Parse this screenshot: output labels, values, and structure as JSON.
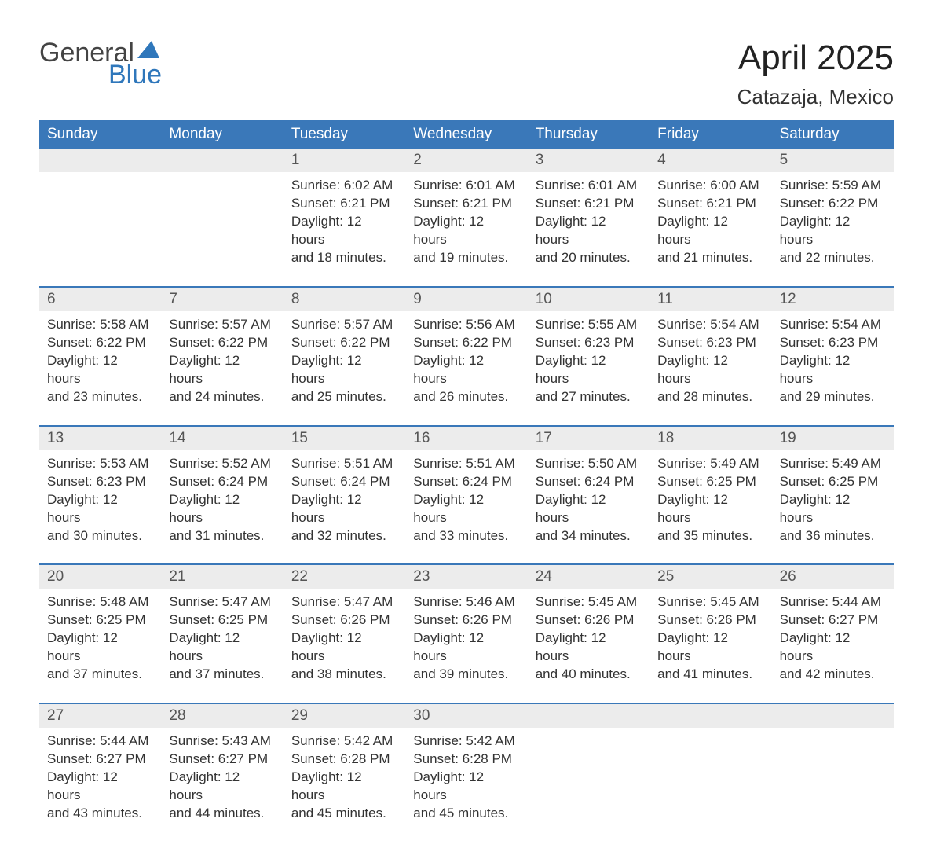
{
  "brand": {
    "part1": "General",
    "part2": "Blue",
    "accent_color": "#2f77bb",
    "text_color": "#444444"
  },
  "title": "April 2025",
  "location": "Catazaja, Mexico",
  "colors": {
    "header_bg": "#3a78b9",
    "header_text": "#ffffff",
    "date_bg": "#ececec",
    "date_text": "#555555",
    "body_text": "#333333",
    "rule": "#3a78b9",
    "page_bg": "#ffffff"
  },
  "fonts": {
    "title_size": 44,
    "location_size": 26,
    "dayheader_size": 19,
    "datenum_size": 19,
    "detail_size": 17
  },
  "day_names": [
    "Sunday",
    "Monday",
    "Tuesday",
    "Wednesday",
    "Thursday",
    "Friday",
    "Saturday"
  ],
  "weeks": [
    {
      "dates": [
        "",
        "",
        "1",
        "2",
        "3",
        "4",
        "5"
      ],
      "details": [
        {
          "sunrise": "",
          "sunset": "",
          "daylight1": "",
          "daylight2": ""
        },
        {
          "sunrise": "",
          "sunset": "",
          "daylight1": "",
          "daylight2": ""
        },
        {
          "sunrise": "Sunrise: 6:02 AM",
          "sunset": "Sunset: 6:21 PM",
          "daylight1": "Daylight: 12 hours",
          "daylight2": "and 18 minutes."
        },
        {
          "sunrise": "Sunrise: 6:01 AM",
          "sunset": "Sunset: 6:21 PM",
          "daylight1": "Daylight: 12 hours",
          "daylight2": "and 19 minutes."
        },
        {
          "sunrise": "Sunrise: 6:01 AM",
          "sunset": "Sunset: 6:21 PM",
          "daylight1": "Daylight: 12 hours",
          "daylight2": "and 20 minutes."
        },
        {
          "sunrise": "Sunrise: 6:00 AM",
          "sunset": "Sunset: 6:21 PM",
          "daylight1": "Daylight: 12 hours",
          "daylight2": "and 21 minutes."
        },
        {
          "sunrise": "Sunrise: 5:59 AM",
          "sunset": "Sunset: 6:22 PM",
          "daylight1": "Daylight: 12 hours",
          "daylight2": "and 22 minutes."
        }
      ]
    },
    {
      "dates": [
        "6",
        "7",
        "8",
        "9",
        "10",
        "11",
        "12"
      ],
      "details": [
        {
          "sunrise": "Sunrise: 5:58 AM",
          "sunset": "Sunset: 6:22 PM",
          "daylight1": "Daylight: 12 hours",
          "daylight2": "and 23 minutes."
        },
        {
          "sunrise": "Sunrise: 5:57 AM",
          "sunset": "Sunset: 6:22 PM",
          "daylight1": "Daylight: 12 hours",
          "daylight2": "and 24 minutes."
        },
        {
          "sunrise": "Sunrise: 5:57 AM",
          "sunset": "Sunset: 6:22 PM",
          "daylight1": "Daylight: 12 hours",
          "daylight2": "and 25 minutes."
        },
        {
          "sunrise": "Sunrise: 5:56 AM",
          "sunset": "Sunset: 6:22 PM",
          "daylight1": "Daylight: 12 hours",
          "daylight2": "and 26 minutes."
        },
        {
          "sunrise": "Sunrise: 5:55 AM",
          "sunset": "Sunset: 6:23 PM",
          "daylight1": "Daylight: 12 hours",
          "daylight2": "and 27 minutes."
        },
        {
          "sunrise": "Sunrise: 5:54 AM",
          "sunset": "Sunset: 6:23 PM",
          "daylight1": "Daylight: 12 hours",
          "daylight2": "and 28 minutes."
        },
        {
          "sunrise": "Sunrise: 5:54 AM",
          "sunset": "Sunset: 6:23 PM",
          "daylight1": "Daylight: 12 hours",
          "daylight2": "and 29 minutes."
        }
      ]
    },
    {
      "dates": [
        "13",
        "14",
        "15",
        "16",
        "17",
        "18",
        "19"
      ],
      "details": [
        {
          "sunrise": "Sunrise: 5:53 AM",
          "sunset": "Sunset: 6:23 PM",
          "daylight1": "Daylight: 12 hours",
          "daylight2": "and 30 minutes."
        },
        {
          "sunrise": "Sunrise: 5:52 AM",
          "sunset": "Sunset: 6:24 PM",
          "daylight1": "Daylight: 12 hours",
          "daylight2": "and 31 minutes."
        },
        {
          "sunrise": "Sunrise: 5:51 AM",
          "sunset": "Sunset: 6:24 PM",
          "daylight1": "Daylight: 12 hours",
          "daylight2": "and 32 minutes."
        },
        {
          "sunrise": "Sunrise: 5:51 AM",
          "sunset": "Sunset: 6:24 PM",
          "daylight1": "Daylight: 12 hours",
          "daylight2": "and 33 minutes."
        },
        {
          "sunrise": "Sunrise: 5:50 AM",
          "sunset": "Sunset: 6:24 PM",
          "daylight1": "Daylight: 12 hours",
          "daylight2": "and 34 minutes."
        },
        {
          "sunrise": "Sunrise: 5:49 AM",
          "sunset": "Sunset: 6:25 PM",
          "daylight1": "Daylight: 12 hours",
          "daylight2": "and 35 minutes."
        },
        {
          "sunrise": "Sunrise: 5:49 AM",
          "sunset": "Sunset: 6:25 PM",
          "daylight1": "Daylight: 12 hours",
          "daylight2": "and 36 minutes."
        }
      ]
    },
    {
      "dates": [
        "20",
        "21",
        "22",
        "23",
        "24",
        "25",
        "26"
      ],
      "details": [
        {
          "sunrise": "Sunrise: 5:48 AM",
          "sunset": "Sunset: 6:25 PM",
          "daylight1": "Daylight: 12 hours",
          "daylight2": "and 37 minutes."
        },
        {
          "sunrise": "Sunrise: 5:47 AM",
          "sunset": "Sunset: 6:25 PM",
          "daylight1": "Daylight: 12 hours",
          "daylight2": "and 37 minutes."
        },
        {
          "sunrise": "Sunrise: 5:47 AM",
          "sunset": "Sunset: 6:26 PM",
          "daylight1": "Daylight: 12 hours",
          "daylight2": "and 38 minutes."
        },
        {
          "sunrise": "Sunrise: 5:46 AM",
          "sunset": "Sunset: 6:26 PM",
          "daylight1": "Daylight: 12 hours",
          "daylight2": "and 39 minutes."
        },
        {
          "sunrise": "Sunrise: 5:45 AM",
          "sunset": "Sunset: 6:26 PM",
          "daylight1": "Daylight: 12 hours",
          "daylight2": "and 40 minutes."
        },
        {
          "sunrise": "Sunrise: 5:45 AM",
          "sunset": "Sunset: 6:26 PM",
          "daylight1": "Daylight: 12 hours",
          "daylight2": "and 41 minutes."
        },
        {
          "sunrise": "Sunrise: 5:44 AM",
          "sunset": "Sunset: 6:27 PM",
          "daylight1": "Daylight: 12 hours",
          "daylight2": "and 42 minutes."
        }
      ]
    },
    {
      "dates": [
        "27",
        "28",
        "29",
        "30",
        "",
        "",
        ""
      ],
      "details": [
        {
          "sunrise": "Sunrise: 5:44 AM",
          "sunset": "Sunset: 6:27 PM",
          "daylight1": "Daylight: 12 hours",
          "daylight2": "and 43 minutes."
        },
        {
          "sunrise": "Sunrise: 5:43 AM",
          "sunset": "Sunset: 6:27 PM",
          "daylight1": "Daylight: 12 hours",
          "daylight2": "and 44 minutes."
        },
        {
          "sunrise": "Sunrise: 5:42 AM",
          "sunset": "Sunset: 6:28 PM",
          "daylight1": "Daylight: 12 hours",
          "daylight2": "and 45 minutes."
        },
        {
          "sunrise": "Sunrise: 5:42 AM",
          "sunset": "Sunset: 6:28 PM",
          "daylight1": "Daylight: 12 hours",
          "daylight2": "and 45 minutes."
        },
        {
          "sunrise": "",
          "sunset": "",
          "daylight1": "",
          "daylight2": ""
        },
        {
          "sunrise": "",
          "sunset": "",
          "daylight1": "",
          "daylight2": ""
        },
        {
          "sunrise": "",
          "sunset": "",
          "daylight1": "",
          "daylight2": ""
        }
      ]
    }
  ]
}
